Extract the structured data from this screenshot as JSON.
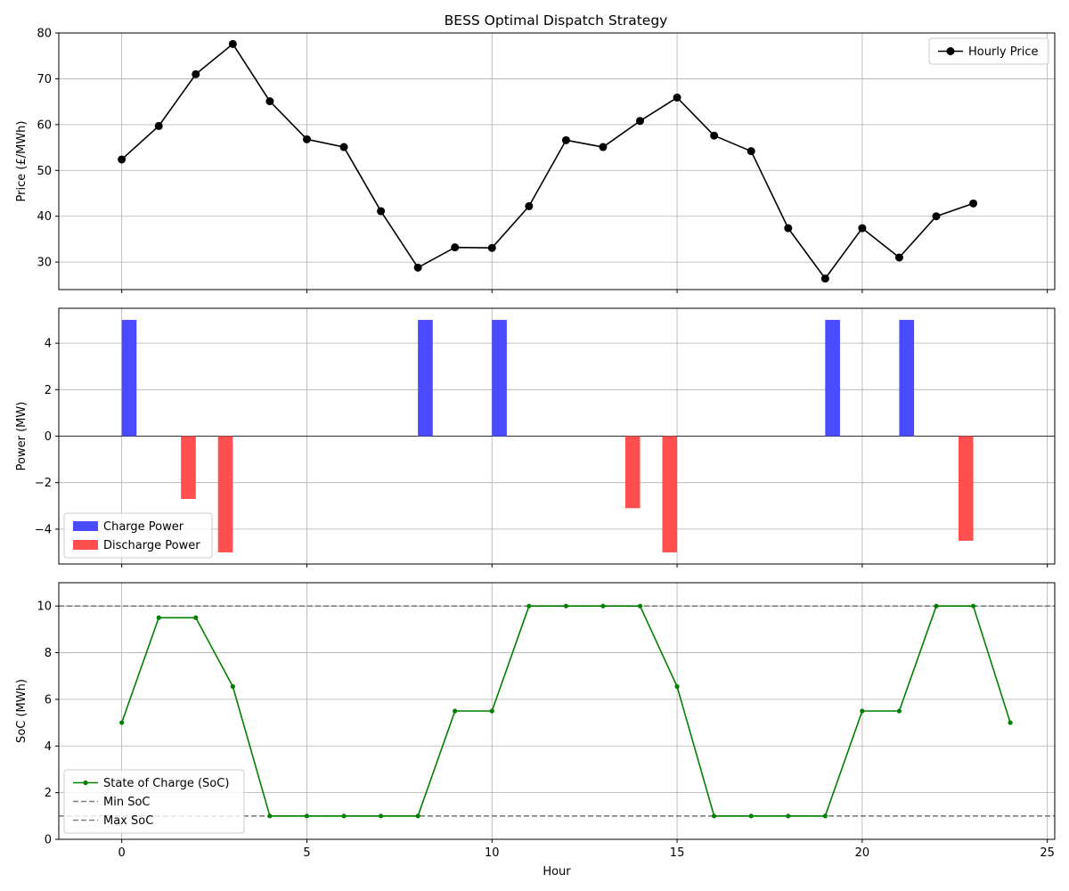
{
  "figure": {
    "title": "BESS Optimal Dispatch Strategy"
  },
  "chart_data": [
    {
      "type": "line",
      "title": "BESS Optimal Dispatch Strategy",
      "xlabel": "",
      "ylabel": "Price (£/MWh)",
      "xlim": [
        -1.7,
        25.2
      ],
      "ylim": [
        24,
        80
      ],
      "x_ticks": [
        0,
        5,
        10,
        15,
        20,
        25
      ],
      "y_ticks": [
        30,
        40,
        50,
        60,
        70,
        80
      ],
      "x_tick_labels_shown": false,
      "grid": true,
      "legend_position": "upper right",
      "series": [
        {
          "name": "Hourly Price",
          "color": "#000000",
          "marker": "circle",
          "x": [
            0,
            1,
            2,
            3,
            4,
            5,
            6,
            7,
            8,
            9,
            10,
            11,
            12,
            13,
            14,
            15,
            16,
            17,
            18,
            19,
            20,
            21,
            22,
            23
          ],
          "values": [
            52.4,
            59.7,
            71.0,
            77.6,
            65.1,
            56.8,
            55.1,
            41.1,
            28.8,
            33.2,
            33.1,
            42.2,
            56.6,
            55.1,
            60.8,
            65.9,
            57.6,
            54.2,
            37.4,
            26.4,
            37.4,
            31.0,
            40.0,
            42.8
          ]
        }
      ]
    },
    {
      "type": "bar",
      "xlabel": "",
      "ylabel": "Power (MW)",
      "xlim": [
        -1.7,
        25.2
      ],
      "ylim": [
        -5.5,
        5.5
      ],
      "x_ticks": [
        0,
        5,
        10,
        15,
        20,
        25
      ],
      "y_ticks": [
        -4,
        -2,
        0,
        2,
        4
      ],
      "y_tick_labels": [
        "−4",
        "−2",
        "0",
        "2",
        "4"
      ],
      "x_tick_labels_shown": false,
      "grid": true,
      "zero_line": true,
      "legend_position": "lower left",
      "bar_width": 0.4,
      "series": [
        {
          "name": "Charge Power",
          "color": "#4a4aff",
          "x": [
            0.2,
            8.2,
            10.2,
            19.2,
            21.2
          ],
          "values": [
            5,
            5,
            5,
            5,
            5
          ]
        },
        {
          "name": "Discharge Power",
          "color": "#ff4f4f",
          "x": [
            1.8,
            2.8,
            13.8,
            14.8,
            22.8
          ],
          "values": [
            -2.7,
            -5,
            -3.1,
            -5,
            -4.5
          ]
        }
      ]
    },
    {
      "type": "line",
      "xlabel": "Hour",
      "ylabel": "SoC (MWh)",
      "xlim": [
        -1.7,
        25.2
      ],
      "ylim": [
        0,
        11
      ],
      "x_ticks": [
        0,
        5,
        10,
        15,
        20,
        25
      ],
      "y_ticks": [
        0,
        2,
        4,
        6,
        8,
        10
      ],
      "x_tick_labels_shown": true,
      "grid": true,
      "legend_position": "lower left",
      "series": [
        {
          "name": "State of Charge (SoC)",
          "color": "#008000",
          "marker": "small-circle",
          "x": [
            0,
            1,
            2,
            3,
            4,
            5,
            6,
            7,
            8,
            9,
            10,
            11,
            12,
            13,
            14,
            15,
            16,
            17,
            18,
            19,
            20,
            21,
            22,
            23,
            24
          ],
          "values": [
            5,
            9.5,
            9.5,
            6.55,
            1,
            1,
            1,
            1,
            1,
            5.5,
            5.5,
            10,
            10,
            10,
            10,
            6.55,
            1,
            1,
            1,
            1,
            5.5,
            5.5,
            10,
            10,
            5
          ]
        }
      ],
      "reference_lines": [
        {
          "name": "Min SoC",
          "y": 10,
          "color": "#808080",
          "style": "dashed"
        },
        {
          "name": "Max SoC",
          "y": 1,
          "color": "#808080",
          "style": "dashed"
        }
      ]
    }
  ]
}
